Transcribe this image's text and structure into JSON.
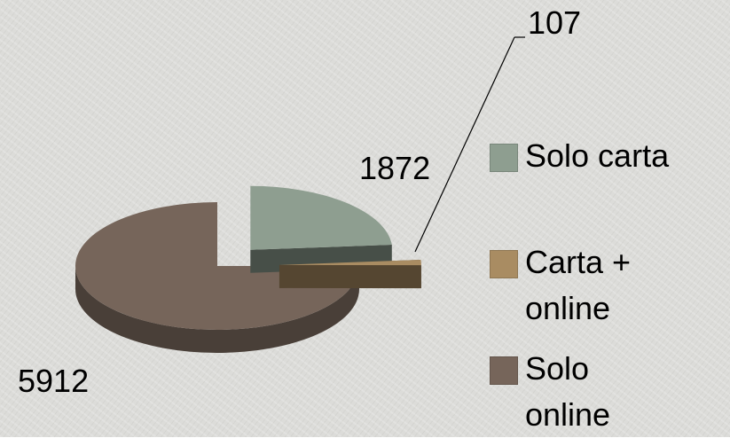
{
  "chart_data": {
    "type": "pie",
    "categories": [
      "Solo carta",
      "Carta + online",
      "Solo online"
    ],
    "values": [
      1872,
      107,
      5912
    ],
    "colors": [
      "#8e9e90",
      "#a98c62",
      "#76655a"
    ]
  }
}
